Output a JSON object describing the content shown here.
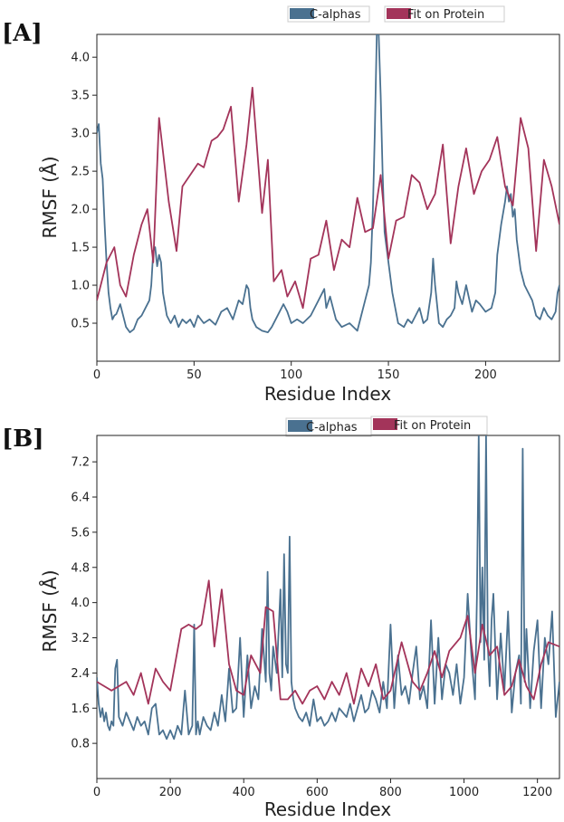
{
  "chart_data": [
    {
      "panel_label": "[A]",
      "type": "line",
      "xlabel": "Residue Index",
      "ylabel": "RMSF (Å)",
      "xlim": [
        0,
        238
      ],
      "ylim": [
        0,
        4.3
      ],
      "xticks": [
        0,
        50,
        100,
        150,
        200
      ],
      "yticks": [
        0.5,
        1.0,
        1.5,
        2.0,
        2.5,
        3.0,
        3.5,
        4.0
      ],
      "ytick_labels": [
        "0.5",
        "1.0",
        "1.5",
        "2.0",
        "2.5",
        "3.0",
        "3.5",
        "4.0"
      ],
      "legend": [
        "C-alphas",
        "Fit on Protein"
      ],
      "series": [
        {
          "name": "C-alphas",
          "color": "#4a7190",
          "x": [
            0,
            1,
            2,
            3,
            4,
            5,
            6,
            7,
            8,
            9,
            10,
            12,
            14,
            15,
            17,
            19,
            21,
            23,
            25,
            27,
            28,
            29,
            30,
            31,
            32,
            33,
            34,
            36,
            38,
            40,
            42,
            44,
            46,
            48,
            50,
            52,
            55,
            58,
            61,
            64,
            67,
            70,
            73,
            75,
            77,
            78,
            79,
            80,
            82,
            85,
            88,
            90,
            93,
            96,
            98,
            100,
            103,
            106,
            110,
            114,
            117,
            118,
            120,
            123,
            126,
            130,
            134,
            136,
            138,
            140,
            141,
            142,
            143,
            144,
            145,
            146,
            147,
            148,
            150,
            152,
            155,
            158,
            160,
            162,
            164,
            166,
            168,
            170,
            172,
            173,
            174,
            176,
            178,
            180,
            182,
            184,
            185,
            186,
            188,
            190,
            193,
            195,
            197,
            200,
            203,
            205,
            206,
            208,
            210,
            211,
            212,
            213,
            214,
            215,
            216,
            218,
            220,
            222,
            224,
            226,
            228,
            230,
            232,
            234,
            236,
            237,
            238
          ],
          "y": [
            3.0,
            3.12,
            2.6,
            2.4,
            1.8,
            1.3,
            0.9,
            0.7,
            0.55,
            0.6,
            0.62,
            0.75,
            0.55,
            0.45,
            0.38,
            0.42,
            0.55,
            0.6,
            0.7,
            0.8,
            1.0,
            1.45,
            1.5,
            1.25,
            1.4,
            1.3,
            0.9,
            0.6,
            0.5,
            0.6,
            0.45,
            0.55,
            0.5,
            0.55,
            0.45,
            0.6,
            0.5,
            0.55,
            0.48,
            0.65,
            0.7,
            0.55,
            0.8,
            0.75,
            1.0,
            0.95,
            0.7,
            0.55,
            0.45,
            0.4,
            0.38,
            0.45,
            0.6,
            0.75,
            0.65,
            0.5,
            0.55,
            0.5,
            0.6,
            0.8,
            0.95,
            0.7,
            0.85,
            0.55,
            0.45,
            0.5,
            0.4,
            0.6,
            0.8,
            1.0,
            1.3,
            2.0,
            3.0,
            4.3,
            4.3,
            3.5,
            2.5,
            1.7,
            1.3,
            0.9,
            0.5,
            0.45,
            0.55,
            0.5,
            0.6,
            0.7,
            0.5,
            0.55,
            0.9,
            1.35,
            1.0,
            0.5,
            0.45,
            0.55,
            0.6,
            0.7,
            1.05,
            0.9,
            0.75,
            1.0,
            0.65,
            0.8,
            0.75,
            0.65,
            0.7,
            0.9,
            1.4,
            1.8,
            2.1,
            2.3,
            2.1,
            2.2,
            1.9,
            2.0,
            1.6,
            1.2,
            1.0,
            0.9,
            0.8,
            0.6,
            0.55,
            0.7,
            0.6,
            0.55,
            0.65,
            0.9,
            1.0
          ]
        },
        {
          "name": "Fit on Protein",
          "color": "#a3345a",
          "x": [
            0,
            5,
            9,
            12,
            15,
            19,
            23,
            26,
            29,
            32,
            37,
            41,
            44,
            48,
            52,
            55,
            59,
            62,
            65,
            69,
            73,
            77,
            80,
            85,
            88,
            91,
            95,
            98,
            102,
            106,
            110,
            114,
            118,
            122,
            126,
            130,
            134,
            138,
            142,
            146,
            150,
            154,
            158,
            162,
            166,
            170,
            174,
            178,
            182,
            186,
            190,
            194,
            198,
            202,
            206,
            210,
            214,
            218,
            222,
            226,
            230,
            234,
            238
          ],
          "y": [
            0.8,
            1.3,
            1.5,
            1.0,
            0.85,
            1.4,
            1.8,
            2.0,
            1.3,
            3.2,
            2.1,
            1.45,
            2.3,
            2.45,
            2.6,
            2.55,
            2.9,
            2.95,
            3.05,
            3.35,
            2.1,
            2.85,
            3.6,
            1.95,
            2.65,
            1.05,
            1.2,
            0.85,
            1.05,
            0.7,
            1.35,
            1.4,
            1.85,
            1.2,
            1.6,
            1.5,
            2.15,
            1.7,
            1.75,
            2.45,
            1.35,
            1.85,
            1.9,
            2.45,
            2.35,
            2.0,
            2.2,
            2.85,
            1.55,
            2.3,
            2.8,
            2.2,
            2.5,
            2.65,
            2.95,
            2.3,
            2.05,
            3.2,
            2.8,
            1.45,
            2.65,
            2.3,
            1.8
          ]
        }
      ]
    },
    {
      "panel_label": "[B]",
      "type": "line",
      "xlabel": "Residue Index",
      "ylabel": "RMSF (Å)",
      "xlim": [
        0,
        1260
      ],
      "ylim": [
        0,
        7.8
      ],
      "xticks": [
        0,
        200,
        400,
        600,
        800,
        1000,
        1200
      ],
      "yticks": [
        0.8,
        1.6,
        2.4,
        3.2,
        4.0,
        4.8,
        5.6,
        6.4,
        7.2
      ],
      "ytick_labels": [
        "0.8",
        "1.6",
        "2.4",
        "3.2",
        "4.0",
        "4.8",
        "5.6",
        "6.4",
        "7.2"
      ],
      "legend": [
        "C-alphas",
        "Fit on Protein"
      ],
      "series": [
        {
          "name": "C-alphas",
          "color": "#4a7190",
          "x": [
            0,
            5,
            10,
            15,
            20,
            25,
            30,
            35,
            40,
            45,
            50,
            55,
            60,
            70,
            80,
            90,
            100,
            110,
            120,
            130,
            140,
            150,
            160,
            170,
            180,
            190,
            200,
            210,
            220,
            230,
            240,
            250,
            260,
            265,
            270,
            275,
            280,
            290,
            300,
            310,
            320,
            330,
            340,
            350,
            360,
            370,
            380,
            390,
            400,
            410,
            420,
            430,
            440,
            450,
            460,
            465,
            470,
            475,
            480,
            490,
            500,
            505,
            510,
            515,
            520,
            525,
            530,
            535,
            540,
            550,
            560,
            570,
            580,
            590,
            600,
            610,
            620,
            630,
            640,
            650,
            660,
            670,
            680,
            690,
            700,
            710,
            720,
            730,
            740,
            750,
            760,
            770,
            780,
            790,
            800,
            810,
            820,
            830,
            840,
            850,
            860,
            870,
            880,
            890,
            900,
            910,
            920,
            930,
            940,
            950,
            960,
            970,
            980,
            990,
            1000,
            1010,
            1020,
            1030,
            1035,
            1040,
            1045,
            1050,
            1055,
            1060,
            1065,
            1070,
            1075,
            1080,
            1090,
            1100,
            1110,
            1120,
            1130,
            1140,
            1150,
            1155,
            1160,
            1165,
            1170,
            1180,
            1190,
            1200,
            1210,
            1220,
            1230,
            1240,
            1250,
            1260
          ],
          "y": [
            2.3,
            1.7,
            1.4,
            1.6,
            1.3,
            1.5,
            1.2,
            1.1,
            1.3,
            1.2,
            2.5,
            2.7,
            1.4,
            1.2,
            1.5,
            1.3,
            1.1,
            1.4,
            1.2,
            1.3,
            1.0,
            1.6,
            1.7,
            1.0,
            1.1,
            0.9,
            1.1,
            0.9,
            1.2,
            1.0,
            2.0,
            1.0,
            1.2,
            3.5,
            1.0,
            1.3,
            1.0,
            1.4,
            1.2,
            1.1,
            1.5,
            1.2,
            1.9,
            1.3,
            2.5,
            1.5,
            1.6,
            3.2,
            1.4,
            2.8,
            1.6,
            2.1,
            1.8,
            3.4,
            2.2,
            4.7,
            2.4,
            2.0,
            3.0,
            2.4,
            4.3,
            2.3,
            5.1,
            2.6,
            2.4,
            5.5,
            2.2,
            1.8,
            1.6,
            1.4,
            1.3,
            1.5,
            1.2,
            1.8,
            1.3,
            1.4,
            1.2,
            1.3,
            1.5,
            1.3,
            1.6,
            1.5,
            1.4,
            1.7,
            1.3,
            1.6,
            1.9,
            1.5,
            1.6,
            2.0,
            1.8,
            1.5,
            2.2,
            1.6,
            3.5,
            1.6,
            2.8,
            1.9,
            2.1,
            1.7,
            2.4,
            3.0,
            1.8,
            2.1,
            1.6,
            3.6,
            1.7,
            3.2,
            1.8,
            2.6,
            2.4,
            1.9,
            2.6,
            1.7,
            2.3,
            4.2,
            2.8,
            1.8,
            4.1,
            7.8,
            3.1,
            4.8,
            2.7,
            7.8,
            3.0,
            2.1,
            3.6,
            4.2,
            1.8,
            3.3,
            2.0,
            3.8,
            1.5,
            2.4,
            2.8,
            1.7,
            7.5,
            2.2,
            3.4,
            1.6,
            2.9,
            3.6,
            1.6,
            3.2,
            2.6,
            3.8,
            1.4,
            2.2
          ]
        },
        {
          "name": "Fit on Protein",
          "color": "#a3345a",
          "x": [
            0,
            40,
            80,
            100,
            120,
            140,
            160,
            180,
            200,
            230,
            250,
            270,
            285,
            305,
            320,
            340,
            360,
            380,
            400,
            420,
            445,
            460,
            480,
            500,
            520,
            540,
            560,
            580,
            600,
            620,
            640,
            660,
            680,
            700,
            720,
            740,
            760,
            780,
            800,
            830,
            860,
            880,
            900,
            920,
            940,
            960,
            990,
            1010,
            1030,
            1050,
            1070,
            1090,
            1110,
            1130,
            1150,
            1170,
            1190,
            1210,
            1230,
            1260
          ],
          "y": [
            2.2,
            2.0,
            2.2,
            1.9,
            2.4,
            1.7,
            2.5,
            2.2,
            2.0,
            3.4,
            3.5,
            3.4,
            3.5,
            4.5,
            3.0,
            4.3,
            2.6,
            2.0,
            1.9,
            2.8,
            2.4,
            3.9,
            3.8,
            1.8,
            1.8,
            2.0,
            1.7,
            2.0,
            2.1,
            1.8,
            2.2,
            1.9,
            2.4,
            1.7,
            2.5,
            2.1,
            2.6,
            1.8,
            2.0,
            3.1,
            2.2,
            2.0,
            2.4,
            2.9,
            2.3,
            2.9,
            3.2,
            3.7,
            2.4,
            3.5,
            2.8,
            3.0,
            1.9,
            2.1,
            2.7,
            2.1,
            1.8,
            2.6,
            3.1,
            3.0
          ]
        }
      ]
    }
  ]
}
